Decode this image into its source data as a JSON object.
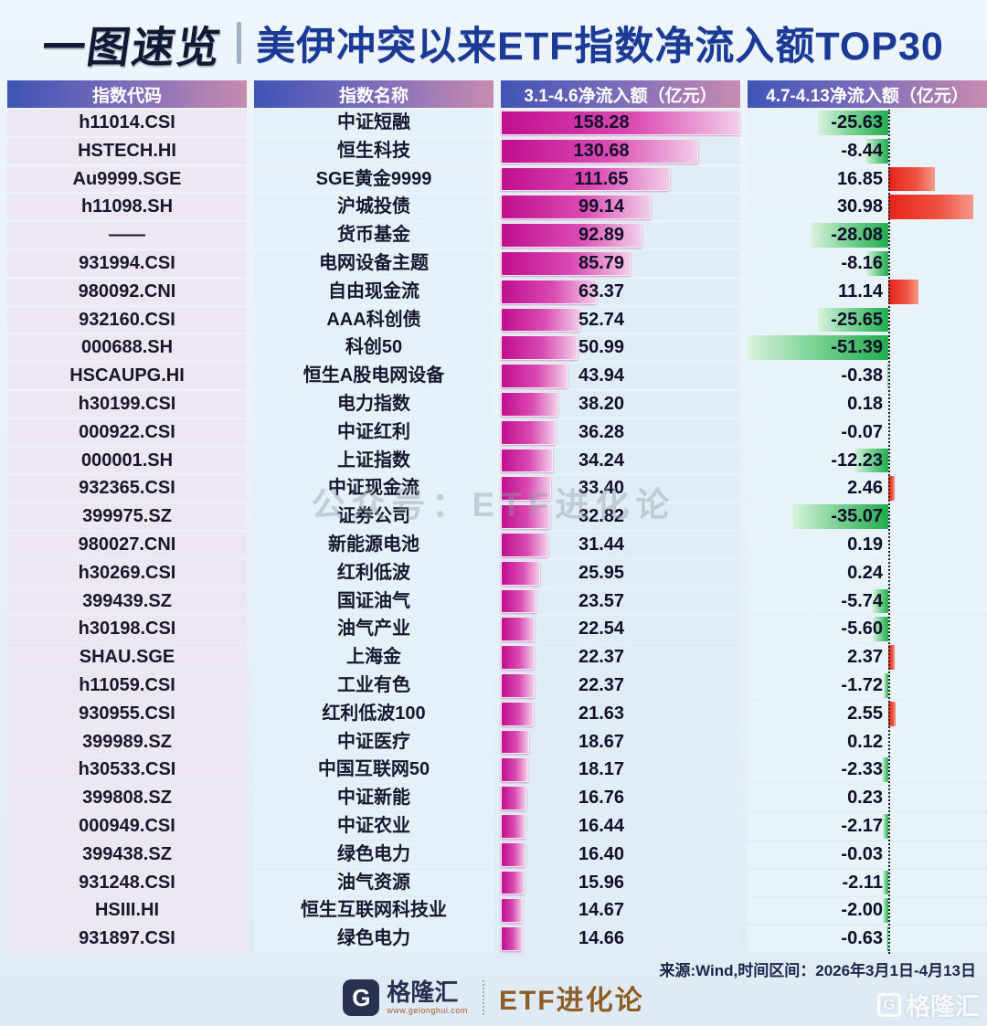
{
  "title": {
    "badge": "一图速览",
    "main": "美伊冲突以来ETF指数净流入额TOP30"
  },
  "table": {
    "headers": [
      "指数代码",
      "指数名称",
      "3.1-4.6净流入额（亿元）",
      "4.7-4.13净流入额（亿元）"
    ]
  },
  "watermark": {
    "center": "公众号：ETF进化论",
    "corner": "格隆汇",
    "corner_glyph": "G"
  },
  "footer": {
    "source": "来源:Wind,时间区间：2026年3月1日-4月13日",
    "brand_glyph": "G",
    "brand_name": "格隆汇",
    "brand_url": "www.gelonghui.com",
    "brand_right": "ETF进化论"
  },
  "colors": {
    "bar_magenta_dark": "#c00e8f",
    "bar_magenta_light": "#f2cde8",
    "bar_green": "#22ad4e",
    "bar_red": "#e7231b",
    "header_blue": "#3f54b5",
    "header_pink": "#c98bb0",
    "title_navy": "#1b3a96"
  },
  "chart_data": {
    "type": "bar",
    "title": "美伊冲突以来ETF指数净流入额TOP30",
    "xlabel": "净流入额（亿元）",
    "categories": [
      "中证短融",
      "恒生科技",
      "SGE黄金9999",
      "沪城投债",
      "货币基金",
      "电网设备主题",
      "自由现金流",
      "AAA科创债",
      "科创50",
      "恒生A股电网设备",
      "电力指数",
      "中证红利",
      "上证指数",
      "中证现金流",
      "证券公司",
      "新能源电池",
      "红利低波",
      "国证油气",
      "油气产业",
      "上海金",
      "工业有色",
      "红利低波100",
      "中证医疗",
      "中国互联网50",
      "中证新能",
      "中证农业",
      "绿色电力",
      "油气资源",
      "恒生互联网科技业",
      "绿色电力"
    ],
    "codes": [
      "h11014.CSI",
      "HSTECH.HI",
      "Au9999.SGE",
      "h11098.SH",
      "——",
      "931994.CSI",
      "980092.CNI",
      "932160.CSI",
      "000688.SH",
      "HSCAUPG.HI",
      "h30199.CSI",
      "000922.CSI",
      "000001.SH",
      "932365.CSI",
      "399975.SZ",
      "980027.CNI",
      "h30269.CSI",
      "399439.SZ",
      "h30198.CSI",
      "SHAU.SGE",
      "h11059.CSI",
      "930955.CSI",
      "399989.SZ",
      "h30533.CSI",
      "399808.SZ",
      "000949.CSI",
      "399438.SZ",
      "931248.CSI",
      "HSIII.HI",
      "931897.CSI"
    ],
    "series": [
      {
        "name": "3.1-4.6净流入额（亿元）",
        "values": [
          158.28,
          130.68,
          111.65,
          99.14,
          92.89,
          85.79,
          63.37,
          52.74,
          50.99,
          43.94,
          38.2,
          36.28,
          34.24,
          33.4,
          32.82,
          31.44,
          25.95,
          23.57,
          22.54,
          22.37,
          22.37,
          21.63,
          18.67,
          18.17,
          16.76,
          16.44,
          16.4,
          15.96,
          14.67,
          14.66
        ]
      },
      {
        "name": "4.7-4.13净流入额（亿元）",
        "values": [
          -25.63,
          -8.44,
          16.85,
          30.98,
          -28.08,
          -8.16,
          11.14,
          -25.65,
          -51.39,
          -0.38,
          0.18,
          -0.07,
          -12.23,
          2.46,
          -35.07,
          0.19,
          0.24,
          -5.74,
          -5.6,
          2.37,
          -1.72,
          2.55,
          0.12,
          -2.33,
          0.23,
          -2.17,
          -0.03,
          -2.11,
          -2.0,
          -0.63
        ]
      }
    ],
    "rows": [
      [
        "h11014.CSI",
        "中证短融",
        "158.28",
        "-25.63"
      ],
      [
        "HSTECH.HI",
        "恒生科技",
        "130.68",
        "-8.44"
      ],
      [
        "Au9999.SGE",
        "SGE黄金9999",
        "111.65",
        "16.85"
      ],
      [
        "h11098.SH",
        "沪城投债",
        "99.14",
        "30.98"
      ],
      [
        "——",
        "货币基金",
        "92.89",
        "-28.08"
      ],
      [
        "931994.CSI",
        "电网设备主题",
        "85.79",
        "-8.16"
      ],
      [
        "980092.CNI",
        "自由现金流",
        "63.37",
        "11.14"
      ],
      [
        "932160.CSI",
        "AAA科创债",
        "52.74",
        "-25.65"
      ],
      [
        "000688.SH",
        "科创50",
        "50.99",
        "-51.39"
      ],
      [
        "HSCAUPG.HI",
        "恒生A股电网设备",
        "43.94",
        "-0.38"
      ],
      [
        "h30199.CSI",
        "电力指数",
        "38.20",
        "0.18"
      ],
      [
        "000922.CSI",
        "中证红利",
        "36.28",
        "-0.07"
      ],
      [
        "000001.SH",
        "上证指数",
        "34.24",
        "-12.23"
      ],
      [
        "932365.CSI",
        "中证现金流",
        "33.40",
        "2.46"
      ],
      [
        "399975.SZ",
        "证券公司",
        "32.82",
        "-35.07"
      ],
      [
        "980027.CNI",
        "新能源电池",
        "31.44",
        "0.19"
      ],
      [
        "h30269.CSI",
        "红利低波",
        "25.95",
        "0.24"
      ],
      [
        "399439.SZ",
        "国证油气",
        "23.57",
        "-5.74"
      ],
      [
        "h30198.CSI",
        "油气产业",
        "22.54",
        "-5.60"
      ],
      [
        "SHAU.SGE",
        "上海金",
        "22.37",
        "2.37"
      ],
      [
        "h11059.CSI",
        "工业有色",
        "22.37",
        "-1.72"
      ],
      [
        "930955.CSI",
        "红利低波100",
        "21.63",
        "2.55"
      ],
      [
        "399989.SZ",
        "中证医疗",
        "18.67",
        "0.12"
      ],
      [
        "h30533.CSI",
        "中国互联网50",
        "18.17",
        "-2.33"
      ],
      [
        "399808.SZ",
        "中证新能",
        "16.76",
        "0.23"
      ],
      [
        "000949.CSI",
        "中证农业",
        "16.44",
        "-2.17"
      ],
      [
        "399438.SZ",
        "绿色电力",
        "16.40",
        "-0.03"
      ],
      [
        "931248.CSI",
        "油气资源",
        "15.96",
        "-2.11"
      ],
      [
        "HSIII.HI",
        "恒生互联网科技业",
        "14.67",
        "-2.00"
      ],
      [
        "931897.CSI",
        "绿色电力",
        "14.66",
        "-0.63"
      ]
    ],
    "layout_hints": {
      "series1_axis_max": 158.28,
      "series2_range": [
        -51.39,
        30.98
      ],
      "bar_direction": "horizontal",
      "grid": false,
      "legend_position": "column-headers"
    }
  }
}
